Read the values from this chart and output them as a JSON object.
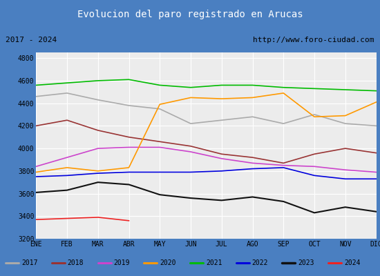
{
  "title": "Evolucion del paro registrado en Arucas",
  "subtitle_left": "2017 - 2024",
  "subtitle_right": "http://www.foro-ciudad.com",
  "months": [
    "ENE",
    "FEB",
    "MAR",
    "ABR",
    "MAY",
    "JUN",
    "JUL",
    "AGO",
    "SEP",
    "OCT",
    "NOV",
    "DIC"
  ],
  "ylim": [
    3200,
    4850
  ],
  "yticks": [
    3200,
    3400,
    3600,
    3800,
    4000,
    4200,
    4400,
    4600,
    4800
  ],
  "series": {
    "2017": {
      "color": "#aaaaaa",
      "linewidth": 1.2,
      "data": [
        4460,
        4490,
        4430,
        4380,
        4350,
        4220,
        4250,
        4280,
        4220,
        4300,
        4220,
        4200
      ]
    },
    "2018": {
      "color": "#993333",
      "linewidth": 1.2,
      "data": [
        4200,
        4250,
        4160,
        4100,
        4060,
        4020,
        3950,
        3920,
        3870,
        3950,
        4000,
        3960
      ]
    },
    "2019": {
      "color": "#cc44cc",
      "linewidth": 1.2,
      "data": [
        3840,
        3920,
        4000,
        4010,
        4010,
        3970,
        3910,
        3870,
        3850,
        3840,
        3810,
        3790
      ]
    },
    "2020": {
      "color": "#ff9900",
      "linewidth": 1.2,
      "data": [
        3790,
        3830,
        3800,
        3830,
        4390,
        4450,
        4440,
        4450,
        4490,
        4280,
        4290,
        4410
      ]
    },
    "2021": {
      "color": "#00bb00",
      "linewidth": 1.2,
      "data": [
        4560,
        4580,
        4600,
        4610,
        4560,
        4540,
        4560,
        4560,
        4540,
        4530,
        4520,
        4510
      ]
    },
    "2022": {
      "color": "#0000dd",
      "linewidth": 1.2,
      "data": [
        3750,
        3760,
        3780,
        3790,
        3790,
        3790,
        3800,
        3820,
        3830,
        3760,
        3730,
        3730
      ]
    },
    "2023": {
      "color": "#111111",
      "linewidth": 1.5,
      "data": [
        3610,
        3630,
        3700,
        3680,
        3590,
        3560,
        3540,
        3570,
        3530,
        3430,
        3480,
        3440
      ]
    },
    "2024": {
      "color": "#ee2222",
      "linewidth": 1.2,
      "data": [
        3370,
        3380,
        3390,
        3360,
        null,
        null,
        null,
        null,
        null,
        null,
        null,
        null
      ]
    }
  },
  "title_bg": "#4a7fc1",
  "title_color": "#ffffff",
  "subtitle_bg": "#ffffff",
  "subtitle_color": "#000000",
  "plot_bg": "#ececec",
  "grid_color": "#ffffff",
  "border_color": "#4a7fc1",
  "legend_bg": "#ffffff"
}
